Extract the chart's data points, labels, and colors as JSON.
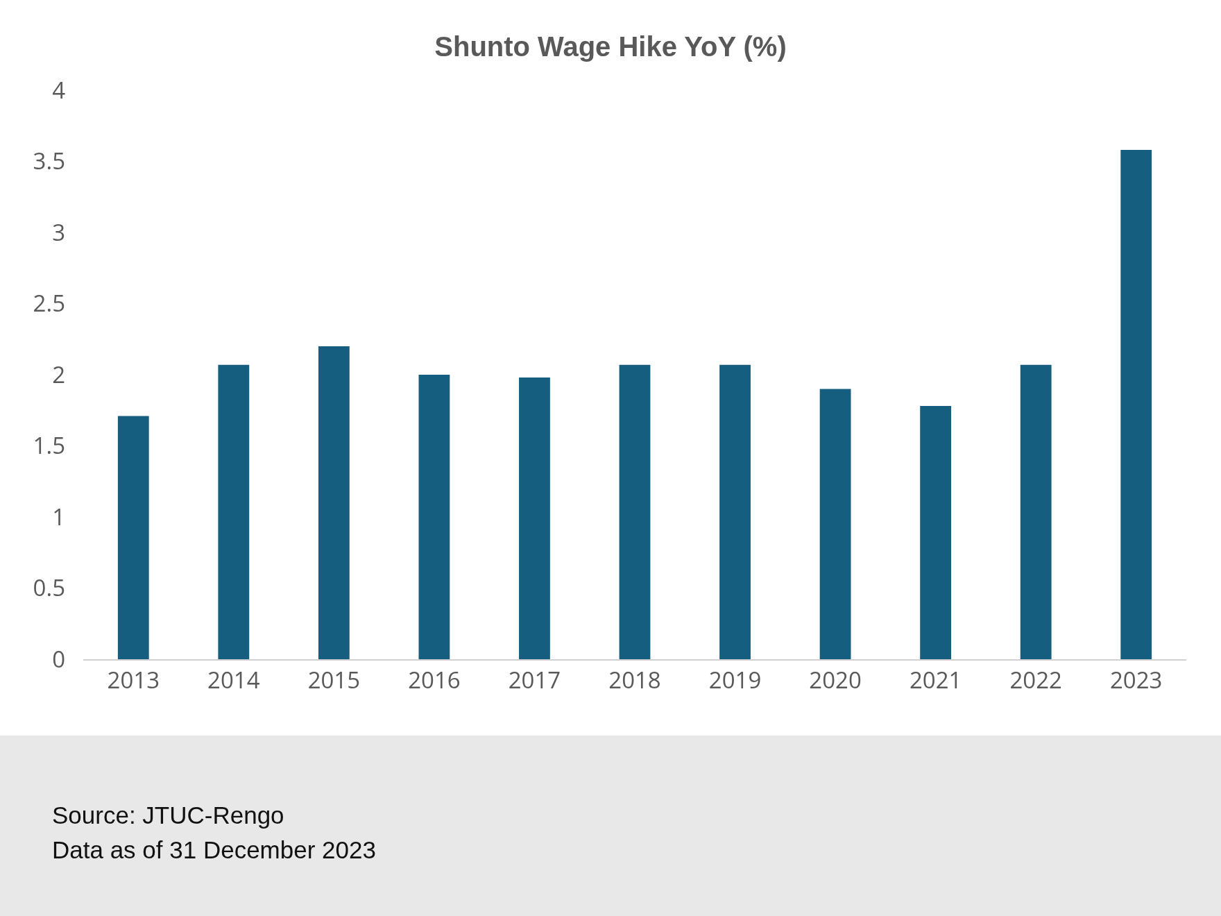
{
  "chart_data": {
    "type": "bar",
    "title": "Shunto Wage Hike YoY (%)",
    "categories": [
      "2013",
      "2014",
      "2015",
      "2016",
      "2017",
      "2018",
      "2019",
      "2020",
      "2021",
      "2022",
      "2023"
    ],
    "values": [
      1.71,
      2.07,
      2.2,
      2.0,
      1.98,
      2.07,
      2.07,
      1.9,
      1.78,
      2.07,
      3.58
    ],
    "color": "#165e80",
    "ylim": [
      0,
      4
    ],
    "yticks": [
      0,
      0.5,
      1,
      1.5,
      2,
      2.5,
      3,
      3.5,
      4
    ],
    "grid": false,
    "annotations": [
      "Source: JTUC-Rengo",
      "Data as of 31 December 2023"
    ]
  }
}
